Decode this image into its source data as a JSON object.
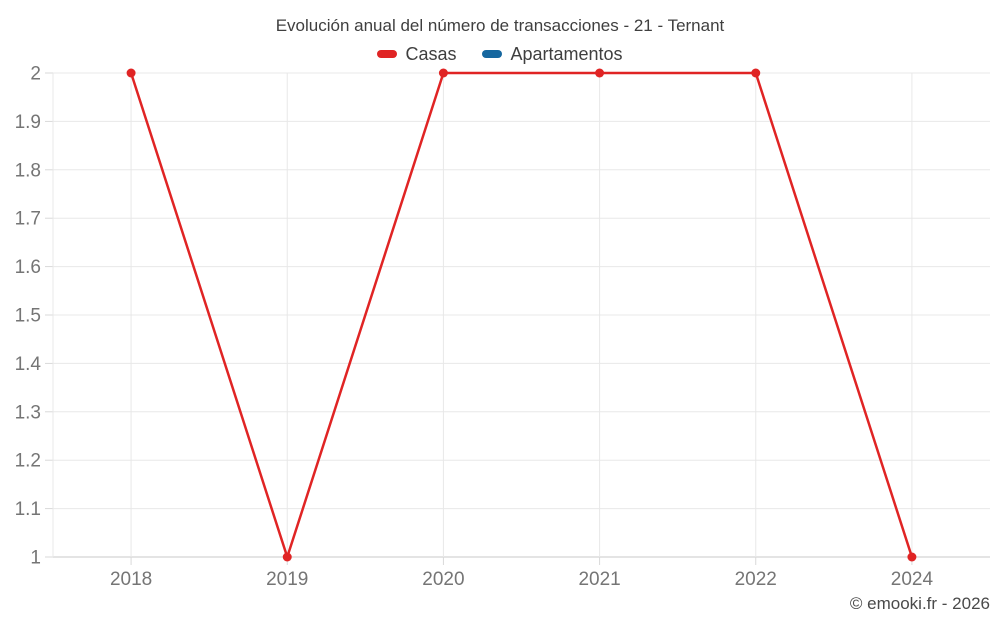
{
  "chart": {
    "title": "Evolución anual del número de transacciones - 21 - Ternant",
    "footer": "© emooki.fr - 2026"
  },
  "chart_data": {
    "type": "line",
    "title": "Evolución anual del número de transacciones - 21 - Ternant",
    "categories": [
      "2018",
      "2019",
      "2020",
      "2021",
      "2022",
      "2024"
    ],
    "series": [
      {
        "name": "Casas",
        "color": "#e02424",
        "values": [
          2,
          1,
          2,
          2,
          2,
          1
        ]
      },
      {
        "name": "Apartamentos",
        "color": "#16679f",
        "values": []
      }
    ],
    "xlabel": "",
    "ylabel": "",
    "ylim": [
      1,
      2
    ],
    "yticks": [
      "1",
      "1.1",
      "1.2",
      "1.3",
      "1.4",
      "1.5",
      "1.6",
      "1.7",
      "1.8",
      "1.9",
      "2"
    ],
    "grid": true,
    "legend_position": "top",
    "footer": "© emooki.fr - 2026",
    "colors": {
      "gridline": "#e8e8e8",
      "axis_line": "#c9c9c9",
      "tick_mark": "#d9d9d9",
      "tick_text": "#757575",
      "title_text": "#3f3f3f"
    }
  }
}
